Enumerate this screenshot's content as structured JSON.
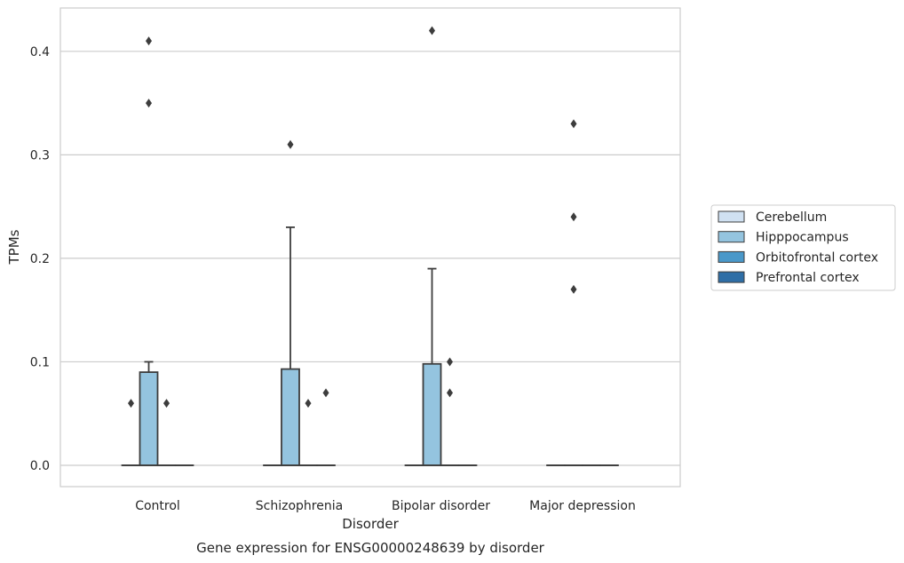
{
  "chart_data": {
    "type": "box",
    "title": "Gene expression for ENSG00000248639 by disorder",
    "xlabel": "Disorder",
    "ylabel": "TPMs",
    "categories": [
      "Control",
      "Schizophrenia",
      "Bipolar disorder",
      "Major depression"
    ],
    "ylim": [
      -0.02,
      0.44
    ],
    "yticks": [
      "0.0",
      "0.1",
      "0.2",
      "0.3",
      "0.4"
    ],
    "ytick_values": [
      0.0,
      0.1,
      0.2,
      0.3,
      0.4
    ],
    "grid": true,
    "legend_position": "right",
    "series": [
      {
        "name": "Cerebellum",
        "color": "#d0e1f2",
        "boxes": [
          {
            "q1": 0,
            "median": 0,
            "q3": 0,
            "whisker_low": 0,
            "whisker_high": 0,
            "outliers": [
              0.06
            ]
          },
          {
            "q1": 0,
            "median": 0,
            "q3": 0,
            "whisker_low": 0,
            "whisker_high": 0,
            "outliers": []
          },
          {
            "q1": 0,
            "median": 0,
            "q3": 0,
            "whisker_low": 0,
            "whisker_high": 0,
            "outliers": []
          },
          {
            "q1": 0,
            "median": 0,
            "q3": 0,
            "whisker_low": 0,
            "whisker_high": 0,
            "outliers": []
          }
        ]
      },
      {
        "name": "Hipppocampus",
        "color": "#94c4df",
        "boxes": [
          {
            "q1": 0,
            "median": 0,
            "q3": 0.09,
            "whisker_low": 0,
            "whisker_high": 0.1,
            "outliers": [
              0.35,
              0.41
            ]
          },
          {
            "q1": 0,
            "median": 0,
            "q3": 0.093,
            "whisker_low": 0,
            "whisker_high": 0.23,
            "outliers": [
              0.31
            ]
          },
          {
            "q1": 0,
            "median": 0,
            "q3": 0.098,
            "whisker_low": 0,
            "whisker_high": 0.19,
            "outliers": [
              0.42
            ]
          },
          {
            "q1": 0,
            "median": 0,
            "q3": 0,
            "whisker_low": 0,
            "whisker_high": 0,
            "outliers": [
              0.17,
              0.24,
              0.33
            ]
          }
        ]
      },
      {
        "name": "Orbitofrontal cortex",
        "color": "#4a98c9",
        "boxes": [
          {
            "q1": 0,
            "median": 0,
            "q3": 0,
            "whisker_low": 0,
            "whisker_high": 0,
            "outliers": [
              0.06
            ]
          },
          {
            "q1": 0,
            "median": 0,
            "q3": 0,
            "whisker_low": 0,
            "whisker_high": 0,
            "outliers": [
              0.06
            ]
          },
          {
            "q1": 0,
            "median": 0,
            "q3": 0,
            "whisker_low": 0,
            "whisker_high": 0,
            "outliers": [
              0.07,
              0.1
            ]
          },
          {
            "q1": 0,
            "median": 0,
            "q3": 0,
            "whisker_low": 0,
            "whisker_high": 0,
            "outliers": []
          }
        ]
      },
      {
        "name": "Prefrontal cortex",
        "color": "#2e6ea6",
        "boxes": [
          {
            "q1": 0,
            "median": 0,
            "q3": 0,
            "whisker_low": 0,
            "whisker_high": 0,
            "outliers": []
          },
          {
            "q1": 0,
            "median": 0,
            "q3": 0,
            "whisker_low": 0,
            "whisker_high": 0,
            "outliers": [
              0.07
            ]
          },
          {
            "q1": 0,
            "median": 0,
            "q3": 0,
            "whisker_low": 0,
            "whisker_high": 0,
            "outliers": []
          },
          {
            "q1": 0,
            "median": 0,
            "q3": 0,
            "whisker_low": 0,
            "whisker_high": 0,
            "outliers": []
          }
        ]
      }
    ]
  }
}
